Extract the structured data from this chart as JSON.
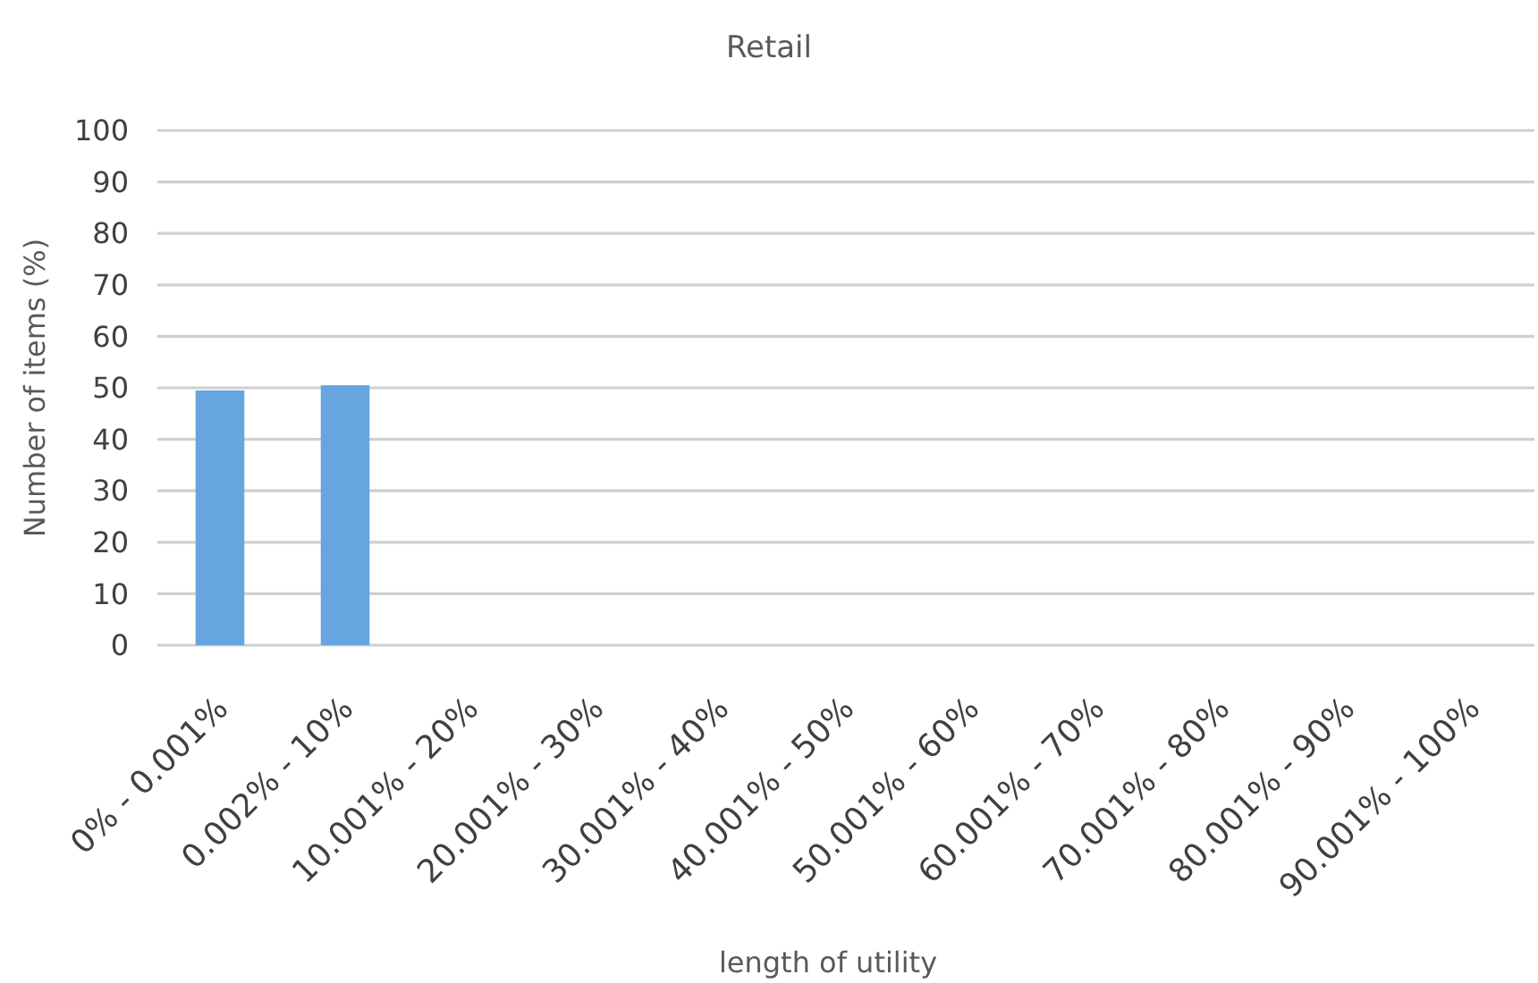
{
  "chart_data": {
    "type": "bar",
    "title": "Retail",
    "xlabel": "length of utility",
    "ylabel": "Number of items (%)",
    "categories": [
      "0% - 0.001%",
      "0.002% - 10%",
      "10.001% - 20%",
      "20.001% - 30%",
      "30.001% - 40%",
      "40.001% - 50%",
      "50.001% - 60%",
      "60.001% - 70%",
      "70.001% - 80%",
      "80.001% - 90%",
      "90.001% - 100%"
    ],
    "values": [
      49.5,
      50.5,
      0,
      0,
      0,
      0,
      0,
      0,
      0,
      0,
      0
    ],
    "color": "#66a5e0",
    "ylim": [
      0,
      100
    ],
    "yticks": [
      0,
      10,
      20,
      30,
      40,
      50,
      60,
      70,
      80,
      90,
      100
    ],
    "grid": "y"
  }
}
